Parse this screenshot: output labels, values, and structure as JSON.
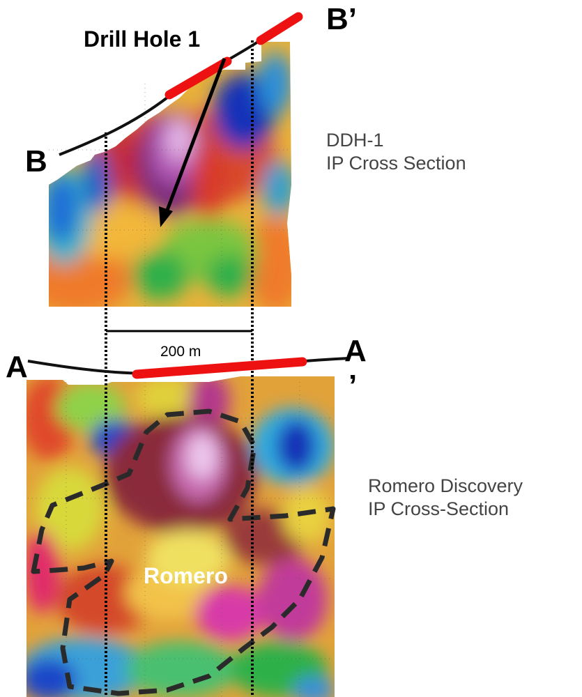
{
  "upper_section": {
    "drill_hole_label": "Drill Hole 1",
    "left_endpoint_label": "B",
    "right_endpoint_label": "B’",
    "caption_line1": "DDH-1",
    "caption_line2": "IP Cross Section"
  },
  "scale_bar": {
    "label": "200 m"
  },
  "lower_section": {
    "left_endpoint_label": "A",
    "right_endpoint_label_top": "A",
    "right_endpoint_label_bottom": "’",
    "caption_line1": "Romero Discovery",
    "caption_line2": "IP Cross-Section",
    "orebody_label": "Romero"
  },
  "colors": {
    "line_marker": "#ee1111",
    "profile_line": "#111111",
    "outline_dash": "#2a2a2a"
  }
}
